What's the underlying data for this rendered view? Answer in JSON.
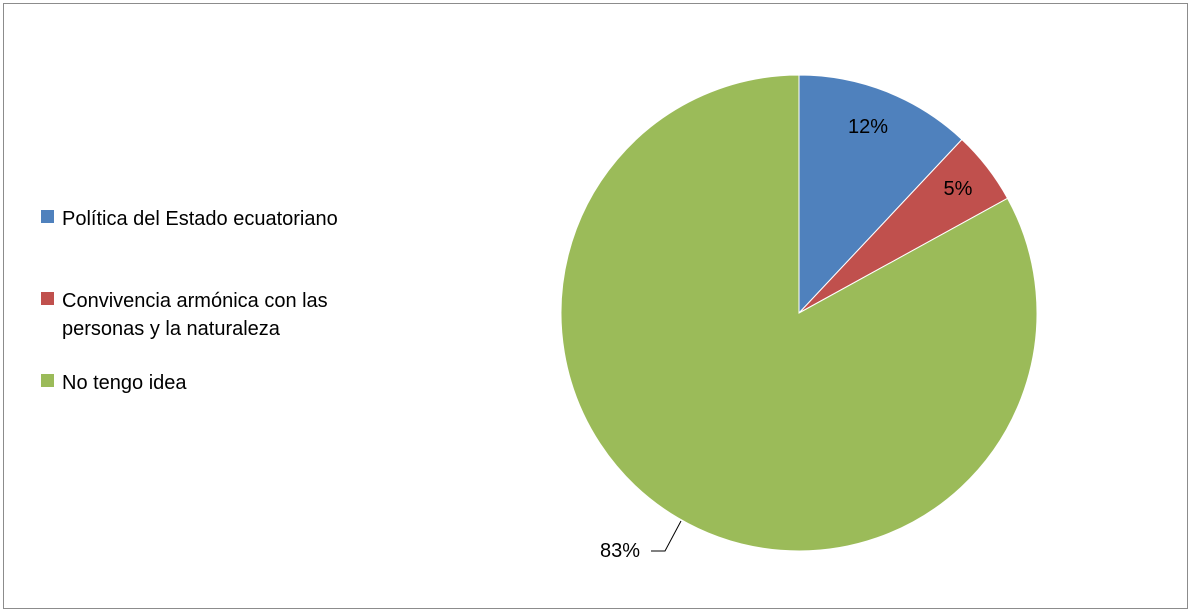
{
  "chart_data": {
    "type": "pie",
    "title": "",
    "legend_position": "left",
    "series": [
      {
        "categories": [
          "Política del Estado ecuatoriano",
          "Convivencia armónica con las personas y la naturaleza",
          "No tengo idea"
        ],
        "values": [
          12,
          5,
          83
        ],
        "labels": [
          "12%",
          "5%",
          "83%"
        ],
        "colors": [
          "#4f81bd",
          "#c0504d",
          "#9bbb59"
        ]
      }
    ]
  }
}
